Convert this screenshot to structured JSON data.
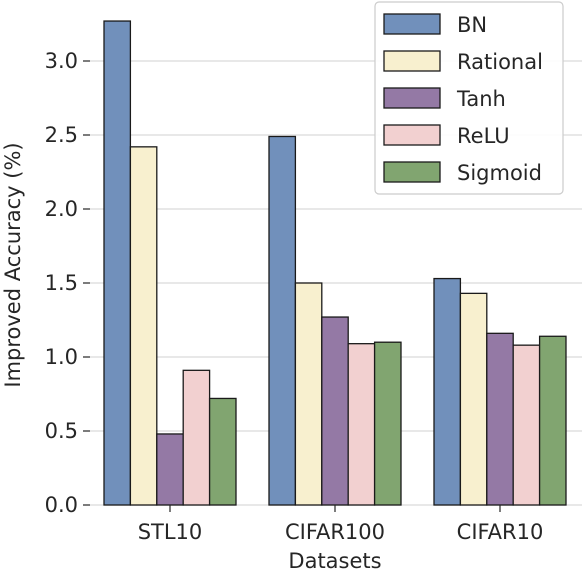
{
  "chart_data": {
    "type": "bar",
    "title": "",
    "xlabel": "Datasets",
    "ylabel": "Improved Accuracy (%)",
    "categories": [
      "STL10",
      "CIFAR100",
      "CIFAR10"
    ],
    "series": [
      {
        "name": "BN",
        "color": "#7190bb",
        "values": [
          3.27,
          2.49,
          1.53
        ]
      },
      {
        "name": "Rational",
        "color": "#f8f0cf",
        "values": [
          2.42,
          1.5,
          1.43
        ]
      },
      {
        "name": "Tanh",
        "color": "#9479a5",
        "values": [
          0.48,
          1.27,
          1.16
        ]
      },
      {
        "name": "ReLU",
        "color": "#f2d0d0",
        "values": [
          0.91,
          1.09,
          1.08
        ]
      },
      {
        "name": "Sigmoid",
        "color": "#81a570",
        "values": [
          0.72,
          1.1,
          1.14
        ]
      }
    ],
    "yticks": [
      "0.0",
      "0.5",
      "1.0",
      "1.5",
      "2.0",
      "2.5",
      "3.0"
    ],
    "ylim": [
      0,
      3.3
    ],
    "grid": "horizontal",
    "legend_position": "top-right"
  }
}
